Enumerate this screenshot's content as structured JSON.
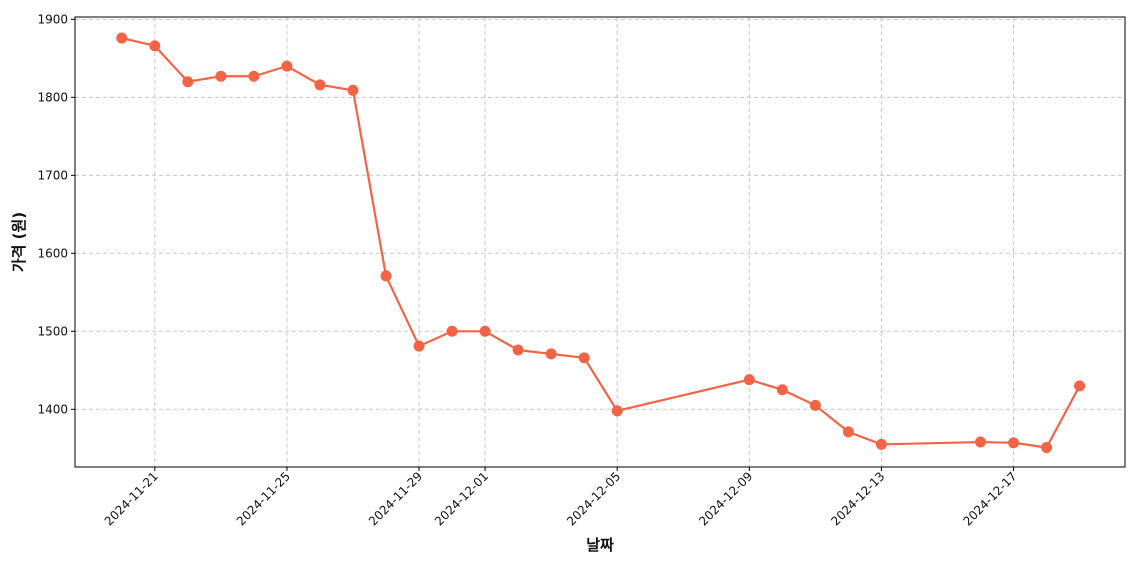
{
  "chart_data": {
    "type": "line",
    "x_label": "날짜",
    "y_label": "가격 (원)",
    "x": [
      "2024-11-20",
      "2024-11-21",
      "2024-11-22",
      "2024-11-23",
      "2024-11-24",
      "2024-11-25",
      "2024-11-26",
      "2024-11-27",
      "2024-11-28",
      "2024-11-29",
      "2024-11-30",
      "2024-12-01",
      "2024-12-02",
      "2024-12-03",
      "2024-12-04",
      "2024-12-05",
      "2024-12-09",
      "2024-12-10",
      "2024-12-11",
      "2024-12-12",
      "2024-12-13",
      "2024-12-16",
      "2024-12-17",
      "2024-12-18",
      "2024-12-19"
    ],
    "series": [
      {
        "name": "가격",
        "color": "#f26445",
        "values": [
          1876,
          1866,
          1820,
          1827,
          1827,
          1840,
          1816,
          1809,
          1571,
          1481,
          1500,
          1500,
          1476,
          1471,
          1466,
          1398,
          1438,
          1425,
          1405,
          1371,
          1355,
          1358,
          1357,
          1351,
          1430
        ]
      }
    ],
    "xlim": [
      "2024-11-18T14:00:00Z",
      "2024-12-20T09:00:00Z"
    ],
    "xticks": [
      "2024-11-21",
      "2024-11-25",
      "2024-11-29",
      "2024-12-01",
      "2024-12-05",
      "2024-12-09",
      "2024-12-13",
      "2024-12-17"
    ],
    "ylim": [
      1326,
      1903
    ],
    "yticks": [
      1400,
      1500,
      1600,
      1700,
      1800,
      1900
    ],
    "grid": true
  }
}
